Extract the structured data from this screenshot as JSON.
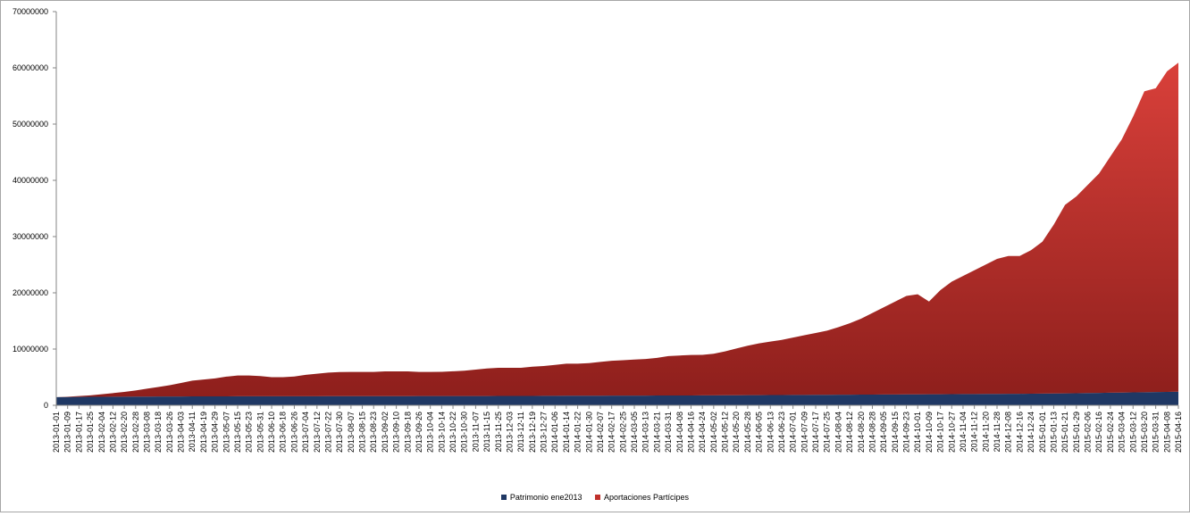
{
  "chart_data": {
    "type": "area",
    "stacked": true,
    "title": "",
    "xlabel": "",
    "ylabel": "",
    "ylim": [
      0,
      70000000
    ],
    "yticks": [
      0,
      10000000,
      20000000,
      30000000,
      40000000,
      50000000,
      60000000,
      70000000
    ],
    "ytick_labels": [
      "0",
      "10000000",
      "20000000",
      "30000000",
      "40000000",
      "50000000",
      "60000000",
      "70000000"
    ],
    "x_ticks": [
      "2013-01-01",
      "2013-01-09",
      "2013-01-17",
      "2013-01-25",
      "2013-02-04",
      "2013-02-12",
      "2013-02-20",
      "2013-02-28",
      "2013-03-08",
      "2013-03-18",
      "2013-03-26",
      "2013-04-03",
      "2013-04-11",
      "2013-04-19",
      "2013-04-29",
      "2013-05-07",
      "2013-05-15",
      "2013-05-23",
      "2013-05-31",
      "2013-06-10",
      "2013-06-18",
      "2013-06-26",
      "2013-07-04",
      "2013-07-12",
      "2013-07-22",
      "2013-07-30",
      "2013-08-07",
      "2013-08-15",
      "2013-08-23",
      "2013-09-02",
      "2013-09-10",
      "2013-09-18",
      "2013-09-26",
      "2013-10-04",
      "2013-10-14",
      "2013-10-22",
      "2013-10-30",
      "2013-11-07",
      "2013-11-15",
      "2013-11-25",
      "2013-12-03",
      "2013-12-11",
      "2013-12-19",
      "2013-12-27",
      "2014-01-06",
      "2014-01-14",
      "2014-01-22",
      "2014-01-30",
      "2014-02-07",
      "2014-02-17",
      "2014-02-25",
      "2014-03-05",
      "2014-03-13",
      "2014-03-21",
      "2014-03-31",
      "2014-04-08",
      "2014-04-16",
      "2014-04-24",
      "2014-05-02",
      "2014-05-12",
      "2014-05-20",
      "2014-05-28",
      "2014-06-05",
      "2014-06-13",
      "2014-06-23",
      "2014-07-01",
      "2014-07-09",
      "2014-07-17",
      "2014-07-25",
      "2014-08-04",
      "2014-08-12",
      "2014-08-20",
      "2014-08-28",
      "2014-09-05",
      "2014-09-15",
      "2014-09-23",
      "2014-10-01",
      "2014-10-09",
      "2014-10-17",
      "2014-10-27",
      "2014-11-04",
      "2014-11-12",
      "2014-11-20",
      "2014-11-28",
      "2014-12-08",
      "2014-12-16",
      "2014-12-24",
      "2015-01-01",
      "2015-01-13",
      "2015-01-21",
      "2015-01-29",
      "2015-02-06",
      "2015-02-16",
      "2015-02-24",
      "2015-03-04",
      "2015-03-12",
      "2015-03-20",
      "2015-03-31",
      "2015-04-08",
      "2015-04-16"
    ],
    "series": [
      {
        "name": "Patrimonio ene2013",
        "color": "#1f3864",
        "values": [
          1450000,
          1470000,
          1490000,
          1500000,
          1510000,
          1520000,
          1530000,
          1540000,
          1550000,
          1560000,
          1570000,
          1575000,
          1580000,
          1585000,
          1590000,
          1595000,
          1600000,
          1600000,
          1605000,
          1605000,
          1610000,
          1610000,
          1615000,
          1615000,
          1620000,
          1620000,
          1625000,
          1625000,
          1630000,
          1630000,
          1635000,
          1635000,
          1640000,
          1640000,
          1645000,
          1645000,
          1650000,
          1650000,
          1655000,
          1660000,
          1665000,
          1670000,
          1675000,
          1680000,
          1690000,
          1700000,
          1705000,
          1710000,
          1715000,
          1720000,
          1725000,
          1730000,
          1735000,
          1740000,
          1745000,
          1750000,
          1755000,
          1760000,
          1770000,
          1780000,
          1790000,
          1800000,
          1810000,
          1820000,
          1830000,
          1840000,
          1850000,
          1860000,
          1870000,
          1880000,
          1890000,
          1900000,
          1910000,
          1920000,
          1930000,
          1940000,
          1950000,
          1960000,
          1970000,
          1990000,
          2000000,
          2010000,
          2020000,
          2030000,
          2040000,
          2050000,
          2070000,
          2090000,
          2110000,
          2130000,
          2150000,
          2180000,
          2210000,
          2240000,
          2270000,
          2300000,
          2330000,
          2360000,
          2390000,
          2420000
        ]
      },
      {
        "name": "Aportaciones Partícipes",
        "color": "#c0302b",
        "values": [
          0,
          60000,
          160000,
          270000,
          450000,
          650000,
          850000,
          1100000,
          1400000,
          1700000,
          2000000,
          2400000,
          2800000,
          3000000,
          3200000,
          3500000,
          3700000,
          3700000,
          3600000,
          3400000,
          3400000,
          3500000,
          3800000,
          4000000,
          4200000,
          4300000,
          4300000,
          4300000,
          4300000,
          4400000,
          4400000,
          4400000,
          4300000,
          4300000,
          4300000,
          4400000,
          4500000,
          4700000,
          4900000,
          5000000,
          5000000,
          5000000,
          5200000,
          5300000,
          5500000,
          5700000,
          5700000,
          5800000,
          6000000,
          6200000,
          6300000,
          6400000,
          6500000,
          6700000,
          7000000,
          7100000,
          7200000,
          7200000,
          7400000,
          7800000,
          8300000,
          8800000,
          9200000,
          9500000,
          9800000,
          10200000,
          10600000,
          11000000,
          11400000,
          12000000,
          12700000,
          13500000,
          14500000,
          15500000,
          16500000,
          17500000,
          17800000,
          16500000,
          18500000,
          20000000,
          21000000,
          22000000,
          23000000,
          24000000,
          24500000,
          24500000,
          25500000,
          27000000,
          30000000,
          33500000,
          35000000,
          37000000,
          39000000,
          42000000,
          45000000,
          49000000,
          53500000,
          54000000,
          57000000,
          58500000
        ]
      }
    ],
    "legend_position": "bottom",
    "grid": false
  }
}
